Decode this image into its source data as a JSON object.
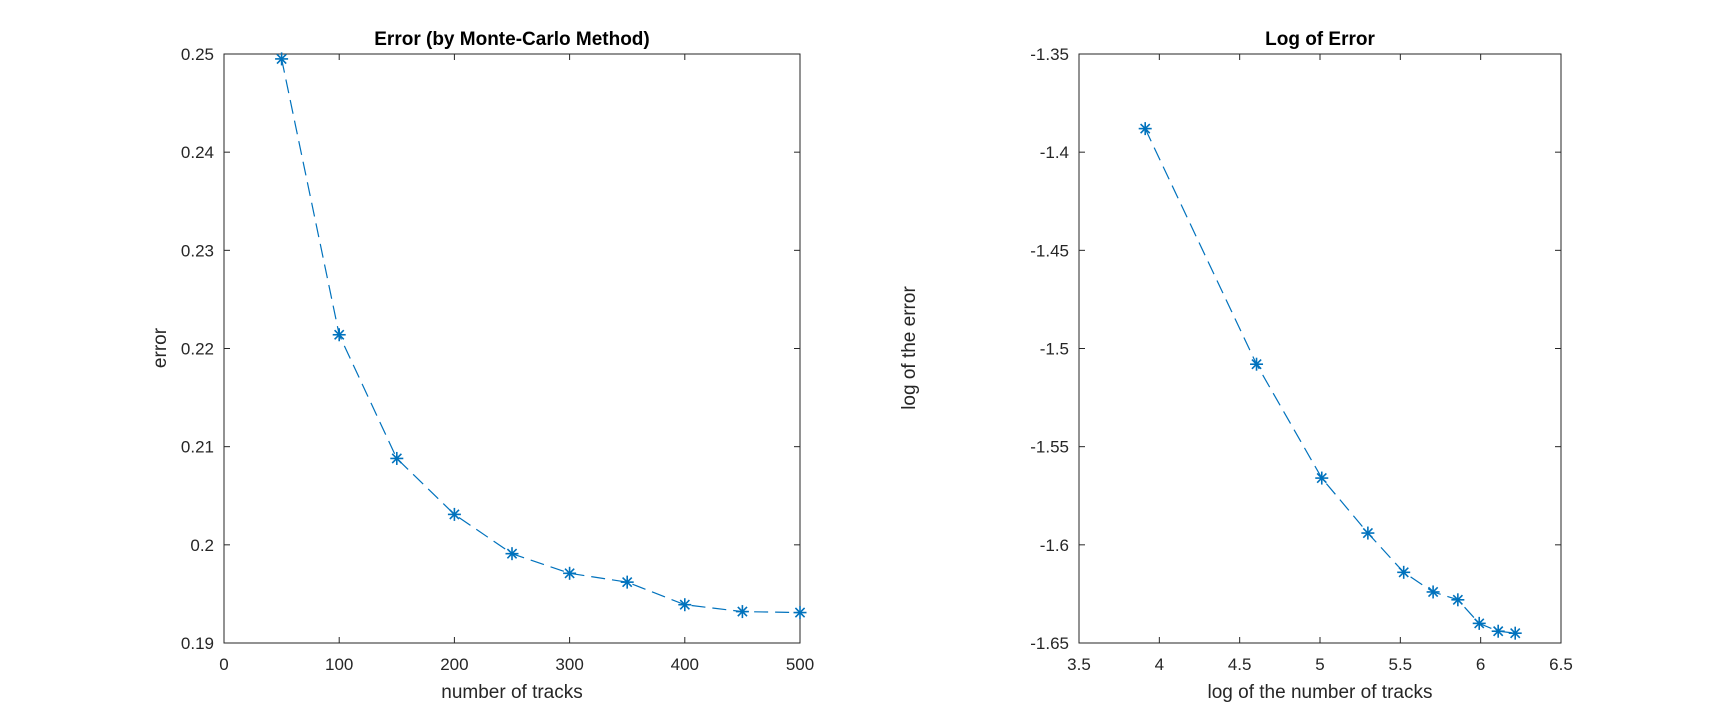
{
  "chart_data": [
    {
      "type": "line",
      "title": "Error (by Monte-Carlo Method)",
      "xlabel": "number of tracks",
      "ylabel": "error",
      "xlim": [
        0,
        500
      ],
      "ylim": [
        0.19,
        0.25
      ],
      "xticks": [
        0,
        100,
        200,
        300,
        400,
        500
      ],
      "xtick_labels": [
        "0",
        "100",
        "200",
        "300",
        "400",
        "500"
      ],
      "yticks": [
        0.19,
        0.2,
        0.21,
        0.22,
        0.23,
        0.24,
        0.25
      ],
      "ytick_labels": [
        "0.19",
        "0.2",
        "0.21",
        "0.22",
        "0.23",
        "0.24",
        "0.25"
      ],
      "grid": false,
      "line_style": "dashed",
      "marker": "asterisk",
      "color": "#0072BD",
      "series": [
        {
          "x": [
            50,
            100,
            150,
            200,
            250,
            300,
            350,
            400,
            450,
            500
          ],
          "y": [
            0.2495,
            0.2214,
            0.2088,
            0.2031,
            0.1991,
            0.1971,
            0.1962,
            0.1939,
            0.1932,
            0.1931
          ]
        }
      ]
    },
    {
      "type": "line",
      "title": "Log of Error",
      "xlabel": "log of the number of tracks",
      "ylabel": "log of the error",
      "xlim": [
        3.5,
        6.5
      ],
      "ylim": [
        -1.65,
        -1.35
      ],
      "xticks": [
        3.5,
        4,
        4.5,
        5,
        5.5,
        6,
        6.5
      ],
      "xtick_labels": [
        "3.5",
        "4",
        "4.5",
        "5",
        "5.5",
        "6",
        "6.5"
      ],
      "yticks": [
        -1.65,
        -1.6,
        -1.55,
        -1.5,
        -1.45,
        -1.4,
        -1.35
      ],
      "ytick_labels": [
        "-1.65",
        "-1.6",
        "-1.55",
        "-1.5",
        "-1.45",
        "-1.4",
        "-1.35"
      ],
      "grid": false,
      "line_style": "dashed",
      "marker": "asterisk",
      "color": "#0072BD",
      "series": [
        {
          "x": [
            3.912,
            4.605,
            5.011,
            5.298,
            5.521,
            5.704,
            5.858,
            5.991,
            6.109,
            6.215
          ],
          "y": [
            -1.388,
            -1.508,
            -1.566,
            -1.594,
            -1.614,
            -1.624,
            -1.628,
            -1.64,
            -1.644,
            -1.645
          ]
        }
      ]
    }
  ]
}
